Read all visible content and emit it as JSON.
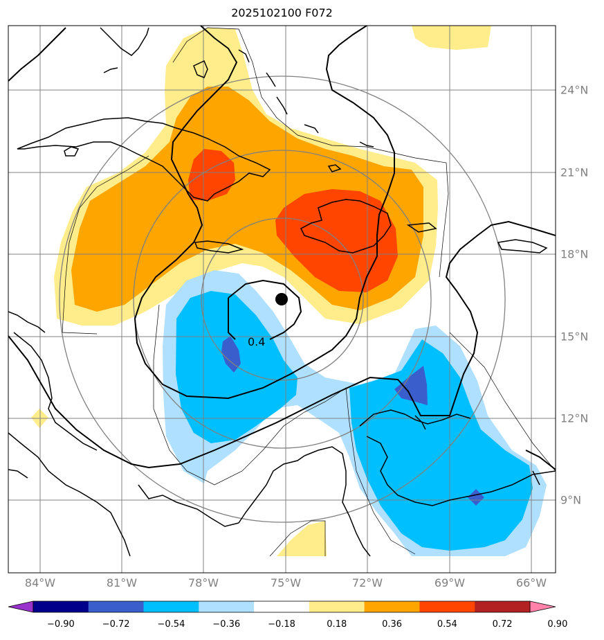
{
  "title": "2025102100 F072",
  "lon_labels": [
    "84°W",
    "81°W",
    "78°W",
    "75°W",
    "72°W",
    "69°W",
    "66°W"
  ],
  "lat_labels": [
    "24°N",
    "21°N",
    "18°N",
    "15°N",
    "12°N",
    "9°N"
  ],
  "contour_label": "0.4",
  "colorbar": {
    "ticks": [
      "−0.90",
      "−0.72",
      "−0.54",
      "−0.36",
      "−0.18",
      "0.18",
      "0.36",
      "0.54",
      "0.72",
      "0.90"
    ],
    "colors": [
      "#9932cc",
      "#00008b",
      "#3a5fcd",
      "#00bfff",
      "#b0e0ff",
      "#ffffff",
      "#ffec8b",
      "#ffa500",
      "#ff4500",
      "#b22222",
      "#ff82ab"
    ]
  },
  "field_colors": {
    "neg_light": "#b0e0ff",
    "neg_mid": "#00bfff",
    "neg_dark": "#3a5fcd",
    "pos_light": "#ffec8b",
    "pos_mid": "#ffa500",
    "pos_dark": "#ff4500"
  },
  "storm_center": {
    "lon": -75.3,
    "lat": 16.4
  }
}
